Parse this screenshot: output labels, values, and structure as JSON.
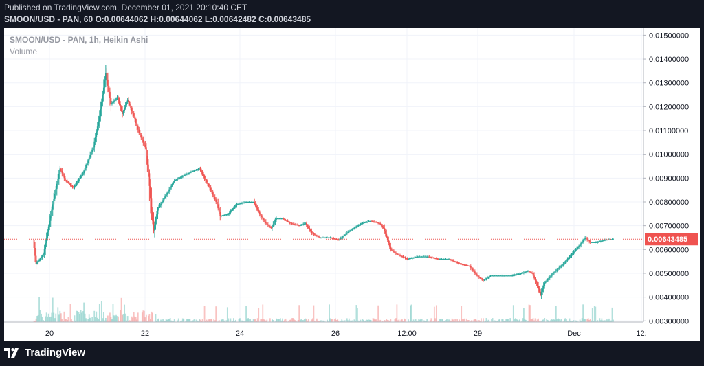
{
  "header": {
    "published": "Published on TradingView.com, December 01, 2021 20:10:40 CET",
    "ohlc": "SMOON/USD - PAN, 60  O:0.00644062  H:0.00644062  L:0.00642482  C:0.00643485"
  },
  "legend": {
    "title": "SMOON/USD - PAN, 1h, Heikin Ashi",
    "volume": "Volume"
  },
  "footer": {
    "brand": "TradingView",
    "logo_icon": "tradingview-logo-icon"
  },
  "colors": {
    "up": "#26a69a",
    "down": "#ef5350",
    "last_price_line": "#ef5350",
    "grid": "#f0f3fa",
    "axis_text": "#131722"
  },
  "chart_data": {
    "type": "candlestick",
    "chart_style": "Heikin Ashi",
    "symbol": "SMOON/USD - PAN",
    "interval": "1h",
    "ylim": [
      0.00295,
      0.0153
    ],
    "y_ticks": [
      "0.01500000",
      "0.01400000",
      "0.01300000",
      "0.01200000",
      "0.01100000",
      "0.01000000",
      "0.00900000",
      "0.00800000",
      "0.00700000",
      "0.00600000",
      "0.00500000",
      "0.00400000",
      "0.00300000"
    ],
    "x_ticks": [
      "20",
      "22",
      "24",
      "26",
      "12:00",
      "29",
      "Dec",
      "12:"
    ],
    "last_price": 0.00643485,
    "last_price_label": "0.00643485",
    "grid": true,
    "volume_pane": true,
    "approx_close_series": [
      {
        "t": 0,
        "close": 0.0064
      },
      {
        "t": 3,
        "close": 0.0054
      },
      {
        "t": 10,
        "close": 0.0058
      },
      {
        "t": 19,
        "close": 0.0079
      },
      {
        "t": 26,
        "close": 0.0094
      },
      {
        "t": 31,
        "close": 0.0089
      },
      {
        "t": 39,
        "close": 0.0086
      },
      {
        "t": 48,
        "close": 0.0092
      },
      {
        "t": 58,
        "close": 0.0103
      },
      {
        "t": 64,
        "close": 0.0116
      },
      {
        "t": 68,
        "close": 0.0128
      },
      {
        "t": 70,
        "close": 0.0134
      },
      {
        "t": 75,
        "close": 0.0121
      },
      {
        "t": 81,
        "close": 0.0124
      },
      {
        "t": 86,
        "close": 0.0117
      },
      {
        "t": 91,
        "close": 0.0123
      },
      {
        "t": 97,
        "close": 0.0116
      },
      {
        "t": 102,
        "close": 0.0109
      },
      {
        "t": 108,
        "close": 0.0103
      },
      {
        "t": 111,
        "close": 0.0092
      },
      {
        "t": 114,
        "close": 0.0076
      },
      {
        "t": 116,
        "close": 0.0068
      },
      {
        "t": 120,
        "close": 0.0077
      },
      {
        "t": 128,
        "close": 0.0083
      },
      {
        "t": 136,
        "close": 0.0089
      },
      {
        "t": 145,
        "close": 0.0091
      },
      {
        "t": 154,
        "close": 0.0093
      },
      {
        "t": 160,
        "close": 0.0094
      },
      {
        "t": 165,
        "close": 0.009
      },
      {
        "t": 171,
        "close": 0.0085
      },
      {
        "t": 177,
        "close": 0.0079
      },
      {
        "t": 180,
        "close": 0.0074
      },
      {
        "t": 188,
        "close": 0.0075
      },
      {
        "t": 196,
        "close": 0.0079
      },
      {
        "t": 205,
        "close": 0.008
      },
      {
        "t": 212,
        "close": 0.008
      },
      {
        "t": 218,
        "close": 0.0075
      },
      {
        "t": 224,
        "close": 0.0071
      },
      {
        "t": 229,
        "close": 0.0069
      },
      {
        "t": 234,
        "close": 0.0073
      },
      {
        "t": 240,
        "close": 0.0073
      },
      {
        "t": 248,
        "close": 0.0071
      },
      {
        "t": 256,
        "close": 0.007
      },
      {
        "t": 262,
        "close": 0.0071
      },
      {
        "t": 268,
        "close": 0.0067
      },
      {
        "t": 276,
        "close": 0.0065
      },
      {
        "t": 286,
        "close": 0.0065
      },
      {
        "t": 294,
        "close": 0.0064
      },
      {
        "t": 305,
        "close": 0.0068
      },
      {
        "t": 316,
        "close": 0.0071
      },
      {
        "t": 325,
        "close": 0.0072
      },
      {
        "t": 333,
        "close": 0.0071
      },
      {
        "t": 337,
        "close": 0.0069
      },
      {
        "t": 341,
        "close": 0.0064
      },
      {
        "t": 344,
        "close": 0.006
      },
      {
        "t": 350,
        "close": 0.0058
      },
      {
        "t": 360,
        "close": 0.0056
      },
      {
        "t": 370,
        "close": 0.0057
      },
      {
        "t": 380,
        "close": 0.0057
      },
      {
        "t": 390,
        "close": 0.0056
      },
      {
        "t": 400,
        "close": 0.0056
      },
      {
        "t": 410,
        "close": 0.0054
      },
      {
        "t": 420,
        "close": 0.0053
      },
      {
        "t": 427,
        "close": 0.0049
      },
      {
        "t": 433,
        "close": 0.0047
      },
      {
        "t": 440,
        "close": 0.0049
      },
      {
        "t": 450,
        "close": 0.0049
      },
      {
        "t": 460,
        "close": 0.0049
      },
      {
        "t": 470,
        "close": 0.005
      },
      {
        "t": 476,
        "close": 0.0051
      },
      {
        "t": 480,
        "close": 0.005
      },
      {
        "t": 484,
        "close": 0.0046
      },
      {
        "t": 488,
        "close": 0.0041
      },
      {
        "t": 492,
        "close": 0.0046
      },
      {
        "t": 500,
        "close": 0.005
      },
      {
        "t": 510,
        "close": 0.0054
      },
      {
        "t": 518,
        "close": 0.0058
      },
      {
        "t": 526,
        "close": 0.0062
      },
      {
        "t": 531,
        "close": 0.0065
      },
      {
        "t": 536,
        "close": 0.0063
      },
      {
        "t": 542,
        "close": 0.0063
      },
      {
        "t": 550,
        "close": 0.0064
      },
      {
        "t": 558,
        "close": 0.00643485
      }
    ]
  }
}
